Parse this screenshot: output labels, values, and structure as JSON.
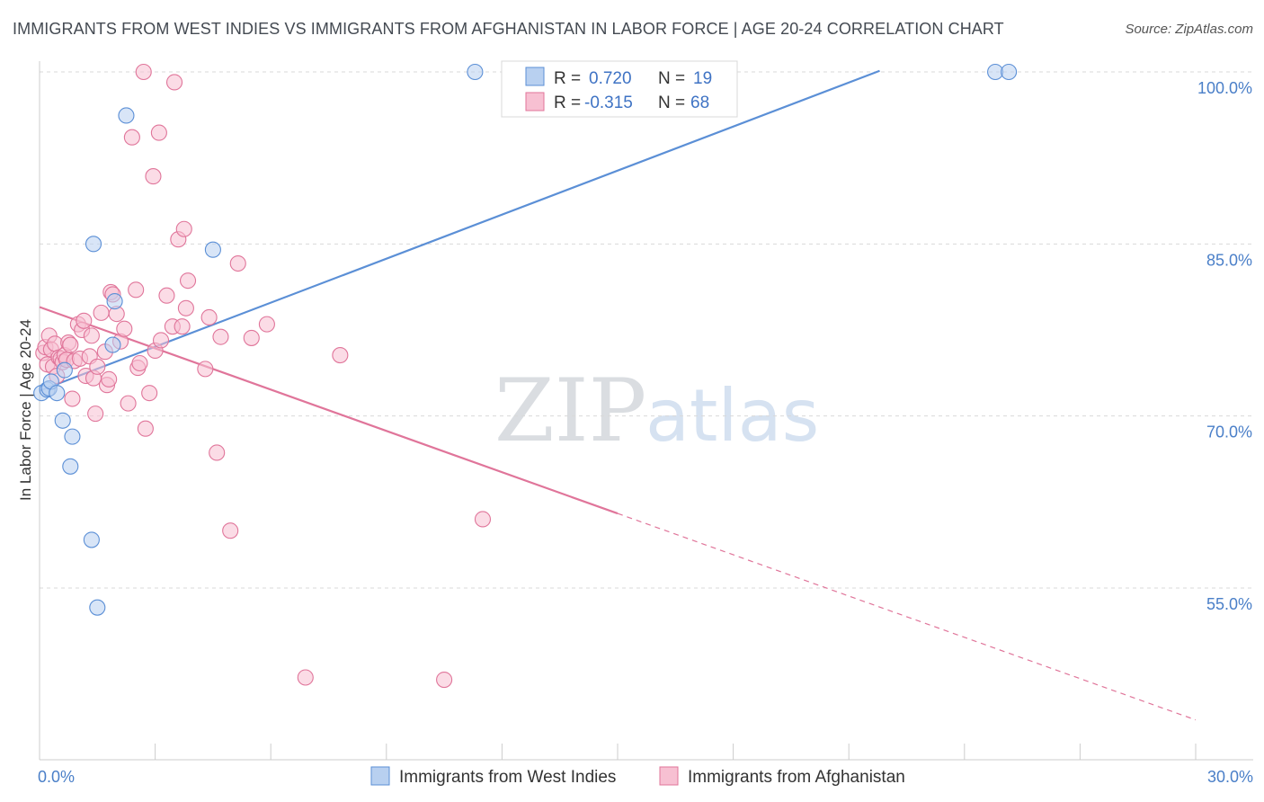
{
  "chart_data": {
    "type": "scatter",
    "title": "IMMIGRANTS FROM WEST INDIES VS IMMIGRANTS FROM AFGHANISTAN IN LABOR FORCE | AGE 20-24 CORRELATION CHART",
    "source": "Source: ZipAtlas.com",
    "xlabel": "",
    "ylabel": "In Labor Force | Age 20-24",
    "xlim": [
      0,
      30
    ],
    "ylim": [
      40,
      101.5
    ],
    "x_tick_labels": [
      "0.0%",
      "30.0%"
    ],
    "y_ticks": [
      55,
      70,
      85,
      100
    ],
    "y_tick_labels": [
      "55.0%",
      "70.0%",
      "85.0%",
      "100.0%"
    ],
    "watermark": {
      "zip": "ZIP",
      "atlas": "atlas"
    },
    "legend": {
      "r_label": "R =",
      "n_label": "N =",
      "entries": [
        {
          "name": "Immigrants from West Indies",
          "r": "0.720",
          "n": "19"
        },
        {
          "name": "Immigrants from Afghanistan",
          "r": "-0.315",
          "n": "68"
        }
      ]
    },
    "series": [
      {
        "name": "Immigrants from West Indies",
        "color": "#5b8fd6",
        "fill": "#b8d0f0",
        "trend": {
          "x1": 0,
          "y1": 72.2,
          "x2": 21.8,
          "y2": 100.1,
          "dashed_to": null
        },
        "points": [
          [
            0.05,
            72.0
          ],
          [
            0.2,
            72.3
          ],
          [
            0.25,
            72.4
          ],
          [
            0.3,
            73.0
          ],
          [
            0.45,
            72.0
          ],
          [
            0.6,
            69.6
          ],
          [
            0.65,
            74.0
          ],
          [
            0.85,
            68.2
          ],
          [
            0.8,
            65.6
          ],
          [
            1.35,
            59.2
          ],
          [
            1.4,
            85.0
          ],
          [
            1.5,
            53.3
          ],
          [
            1.9,
            76.2
          ],
          [
            1.95,
            80.0
          ],
          [
            2.25,
            96.2
          ],
          [
            4.5,
            84.5
          ],
          [
            11.3,
            100.0
          ],
          [
            24.8,
            100.0
          ],
          [
            25.15,
            100.0
          ]
        ]
      },
      {
        "name": "Immigrants from Afghanistan",
        "color": "#e0759a",
        "fill": "#f7c0d2",
        "trend": {
          "x1": 0,
          "y1": 79.5,
          "x2": 15.0,
          "y2": 61.5,
          "dashed_to": [
            30,
            43.5
          ]
        },
        "points": [
          [
            0.1,
            75.5
          ],
          [
            0.15,
            76.0
          ],
          [
            0.2,
            74.5
          ],
          [
            0.25,
            77.0
          ],
          [
            0.3,
            75.8
          ],
          [
            0.35,
            74.3
          ],
          [
            0.4,
            76.3
          ],
          [
            0.45,
            73.5
          ],
          [
            0.5,
            75.1
          ],
          [
            0.55,
            75.0
          ],
          [
            0.6,
            74.7
          ],
          [
            0.65,
            75.3
          ],
          [
            0.7,
            74.9
          ],
          [
            0.75,
            76.4
          ],
          [
            0.8,
            76.2
          ],
          [
            0.85,
            71.5
          ],
          [
            0.9,
            74.8
          ],
          [
            1.0,
            78.0
          ],
          [
            1.05,
            75.0
          ],
          [
            1.1,
            77.5
          ],
          [
            1.15,
            78.3
          ],
          [
            1.2,
            73.5
          ],
          [
            1.3,
            75.2
          ],
          [
            1.35,
            77.0
          ],
          [
            1.4,
            73.3
          ],
          [
            1.45,
            70.2
          ],
          [
            1.5,
            74.3
          ],
          [
            1.6,
            79.0
          ],
          [
            1.7,
            75.6
          ],
          [
            1.75,
            72.7
          ],
          [
            1.8,
            73.2
          ],
          [
            1.85,
            80.8
          ],
          [
            1.9,
            80.6
          ],
          [
            2.0,
            78.9
          ],
          [
            2.1,
            76.5
          ],
          [
            2.2,
            77.6
          ],
          [
            2.3,
            71.1
          ],
          [
            2.4,
            94.3
          ],
          [
            2.5,
            81.0
          ],
          [
            2.55,
            74.2
          ],
          [
            2.6,
            74.6
          ],
          [
            2.7,
            100.0
          ],
          [
            2.75,
            68.9
          ],
          [
            2.85,
            72.0
          ],
          [
            2.95,
            90.9
          ],
          [
            3.0,
            75.7
          ],
          [
            3.1,
            94.7
          ],
          [
            3.15,
            76.6
          ],
          [
            3.3,
            80.5
          ],
          [
            3.45,
            77.8
          ],
          [
            3.5,
            99.1
          ],
          [
            3.6,
            85.4
          ],
          [
            3.7,
            77.8
          ],
          [
            3.75,
            86.3
          ],
          [
            3.8,
            79.4
          ],
          [
            3.85,
            81.8
          ],
          [
            4.3,
            74.1
          ],
          [
            4.4,
            78.6
          ],
          [
            4.6,
            66.8
          ],
          [
            4.7,
            76.9
          ],
          [
            4.95,
            60.0
          ],
          [
            5.15,
            83.3
          ],
          [
            5.5,
            76.8
          ],
          [
            5.9,
            78.0
          ],
          [
            6.9,
            47.2
          ],
          [
            7.8,
            75.3
          ],
          [
            10.5,
            47.0
          ],
          [
            11.5,
            61.0
          ]
        ]
      }
    ]
  }
}
